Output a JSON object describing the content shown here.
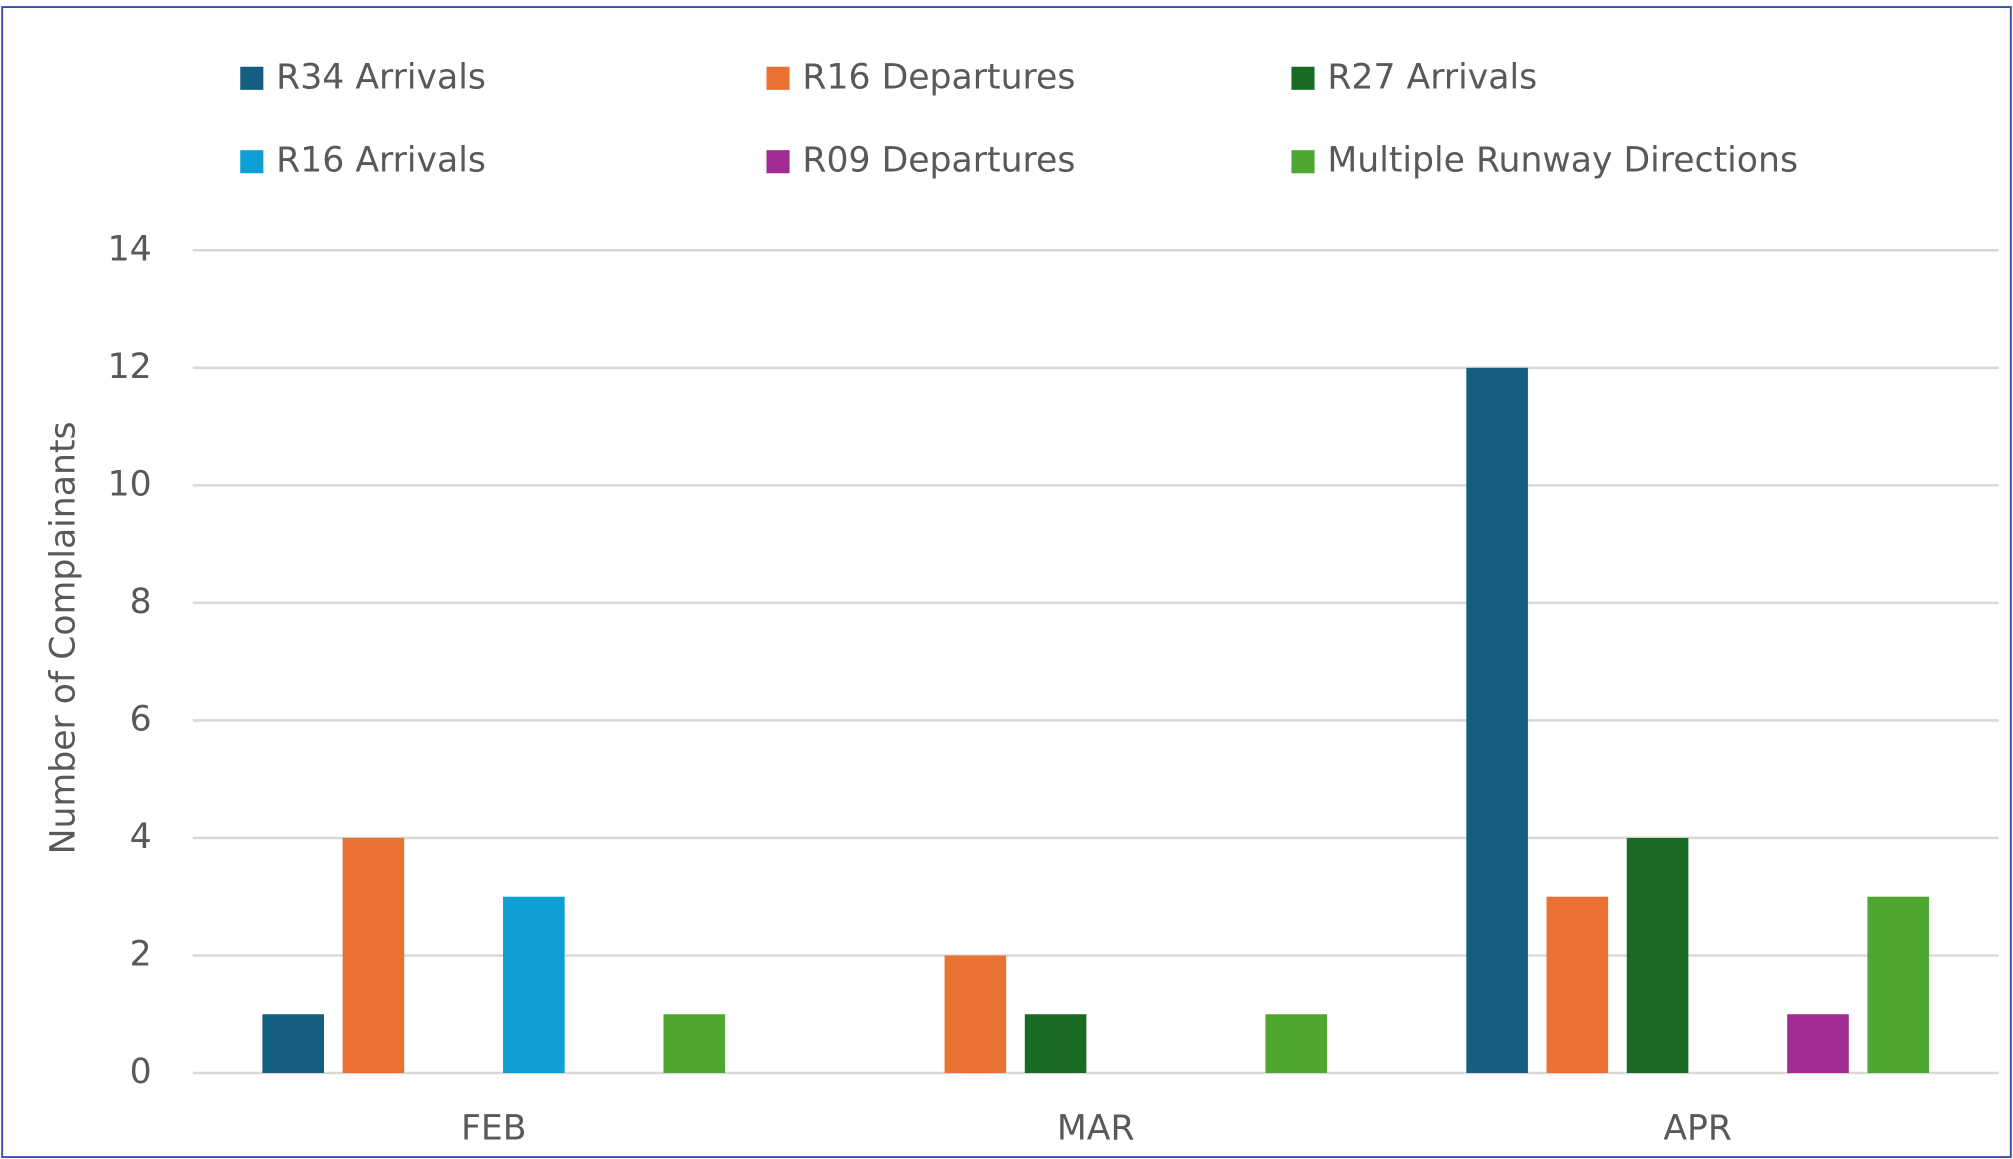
{
  "chart_data": {
    "type": "bar",
    "y_label": "Number of Complainants",
    "categories": [
      "FEB",
      "MAR",
      "APR"
    ],
    "series": [
      {
        "name": "R34 Arrivals",
        "color": "#165e80",
        "values": [
          1,
          0,
          12
        ]
      },
      {
        "name": "R16 Departures",
        "color": "#e97132",
        "values": [
          4,
          2,
          3
        ]
      },
      {
        "name": "R27 Arrivals",
        "color": "#196b24",
        "values": [
          0,
          1,
          4
        ]
      },
      {
        "name": "R16 Arrivals",
        "color": "#0f9ed5",
        "values": [
          3,
          0,
          0
        ]
      },
      {
        "name": "R09 Departures",
        "color": "#a02b93",
        "values": [
          0,
          0,
          1
        ]
      },
      {
        "name": "Multiple Runway Directions",
        "color": "#4ea72e",
        "values": [
          1,
          1,
          3
        ]
      }
    ],
    "ylim": [
      0,
      14
    ],
    "yticks": [
      0,
      2,
      4,
      6,
      8,
      10,
      12,
      14
    ],
    "grid": true,
    "legend": "top"
  }
}
